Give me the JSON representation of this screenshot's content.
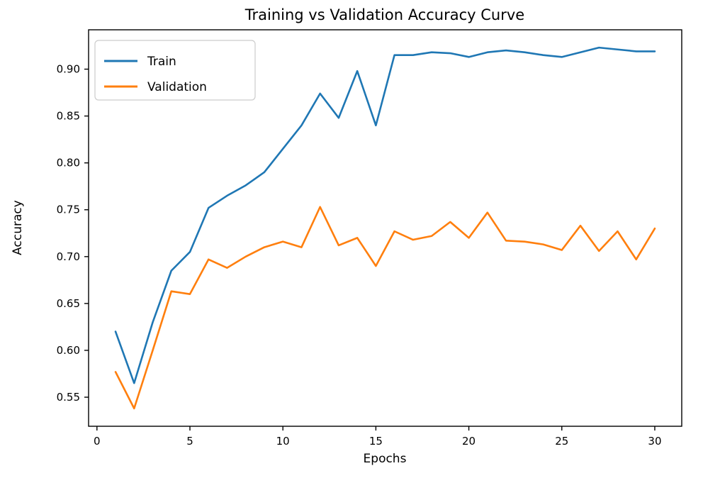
{
  "chart_data": {
    "type": "line",
    "title": "Training vs Validation Accuracy Curve",
    "xlabel": "Epochs",
    "ylabel": "Accuracy",
    "x": [
      1,
      2,
      3,
      4,
      5,
      6,
      7,
      8,
      9,
      10,
      11,
      12,
      13,
      14,
      15,
      16,
      17,
      18,
      19,
      20,
      21,
      22,
      23,
      24,
      25,
      26,
      27,
      28,
      29,
      30
    ],
    "series": [
      {
        "name": "Train",
        "color": "#1f77b4",
        "values": [
          0.62,
          0.565,
          0.63,
          0.685,
          0.705,
          0.752,
          0.765,
          0.776,
          0.79,
          0.815,
          0.84,
          0.874,
          0.848,
          0.898,
          0.84,
          0.915,
          0.915,
          0.918,
          0.917,
          0.913,
          0.918,
          0.92,
          0.918,
          0.915,
          0.913,
          0.918,
          0.923,
          0.921,
          0.919,
          0.919
        ]
      },
      {
        "name": "Validation",
        "color": "#ff7f0e",
        "values": [
          0.577,
          0.538,
          0.6,
          0.663,
          0.66,
          0.697,
          0.688,
          0.7,
          0.71,
          0.716,
          0.71,
          0.753,
          0.712,
          0.72,
          0.69,
          0.727,
          0.718,
          0.722,
          0.737,
          0.72,
          0.747,
          0.717,
          0.716,
          0.713,
          0.707,
          0.733,
          0.706,
          0.727,
          0.697,
          0.73
        ]
      }
    ],
    "xlim": [
      -0.45,
      31.45
    ],
    "ylim": [
      0.519,
      0.942
    ],
    "xticks": [
      0,
      5,
      10,
      15,
      20,
      25,
      30
    ],
    "yticks": [
      0.55,
      0.6,
      0.65,
      0.7,
      0.75,
      0.8,
      0.85,
      0.9
    ],
    "legend_position": "upper left",
    "grid": false,
    "axis_color": "#000000",
    "legend_border_color": "#cccccc"
  }
}
